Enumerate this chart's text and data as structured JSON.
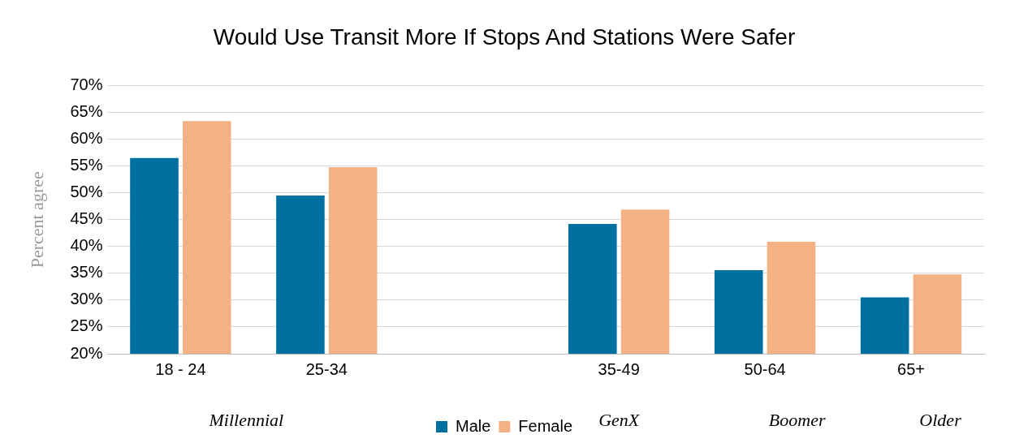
{
  "chart_data": {
    "type": "bar",
    "title": "Would Use Transit More If Stops And Stations Were Safer",
    "ylabel": "Percent agree",
    "categories": [
      "18 - 24",
      "25-34",
      null,
      "35-49",
      "50-64",
      "65+"
    ],
    "series": [
      {
        "name": "Male",
        "color": "#0070a0",
        "values": [
          56.5,
          49.5,
          null,
          44.2,
          35.6,
          30.5
        ]
      },
      {
        "name": "Female",
        "color": "#f4b183",
        "values": [
          63.4,
          54.8,
          null,
          46.9,
          40.9,
          34.8
        ]
      }
    ],
    "ylim": [
      20,
      70
    ],
    "yticks": [
      {
        "value": 20,
        "label": "20%"
      },
      {
        "value": 25,
        "label": "25%"
      },
      {
        "value": 30,
        "label": "30%"
      },
      {
        "value": 35,
        "label": "35%"
      },
      {
        "value": 40,
        "label": "40%"
      },
      {
        "value": 45,
        "label": "45%"
      },
      {
        "value": 50,
        "label": "50%"
      },
      {
        "value": 55,
        "label": "55%"
      },
      {
        "value": 60,
        "label": "60%"
      },
      {
        "value": 65,
        "label": "65%"
      },
      {
        "value": 70,
        "label": "70%"
      }
    ],
    "grid": "y",
    "legend": "bottom",
    "annotations": [
      "Millennial",
      "GenX",
      "Boomer",
      "Older"
    ]
  }
}
